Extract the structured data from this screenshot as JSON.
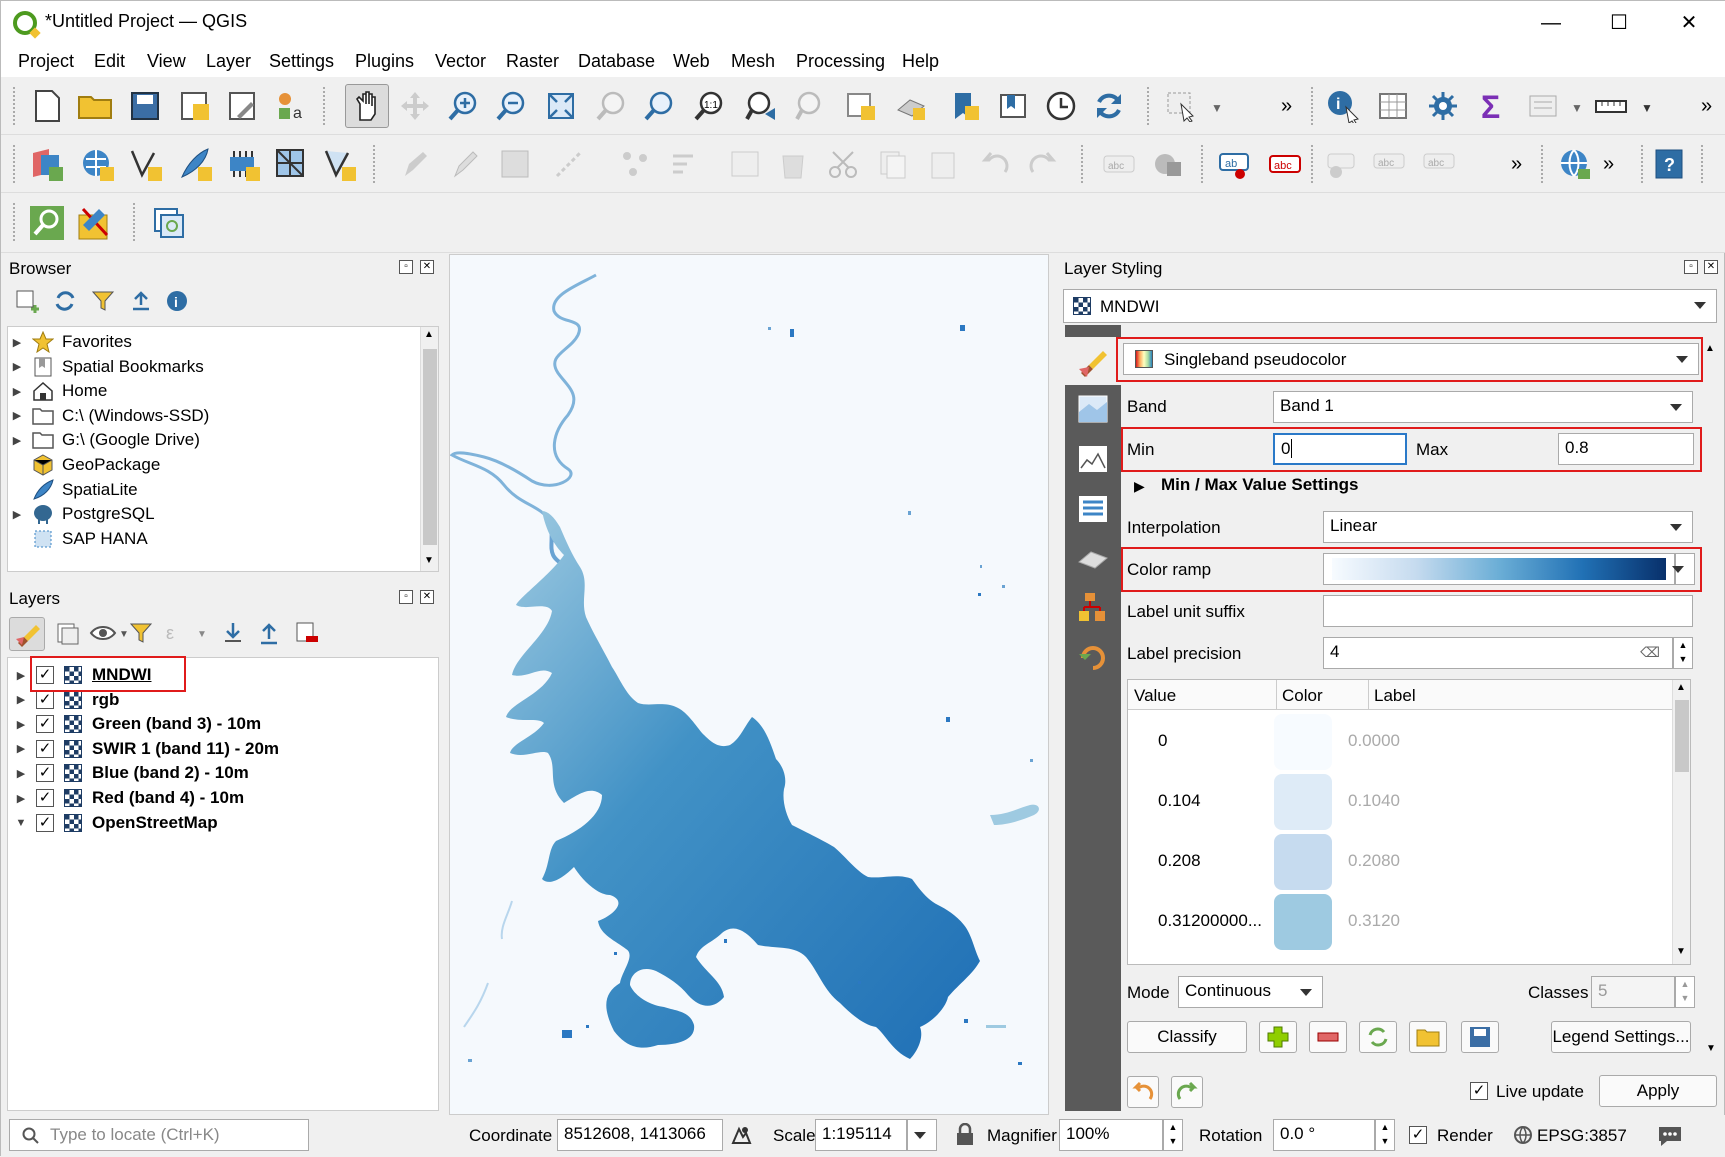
{
  "app": {
    "title": "*Untitled Project — QGIS",
    "menus": [
      "Project",
      "Edit",
      "View",
      "Layer",
      "Settings",
      "Plugins",
      "Vector",
      "Raster",
      "Database",
      "Web",
      "Mesh",
      "Processing",
      "Help"
    ]
  },
  "browser": {
    "title": "Browser",
    "items": [
      {
        "label": "Favorites",
        "icon": "star-icon",
        "expandable": true
      },
      {
        "label": "Spatial Bookmarks",
        "icon": "bookmark-icon",
        "expandable": true
      },
      {
        "label": "Home",
        "icon": "home-icon",
        "expandable": true
      },
      {
        "label": "C:\\ (Windows-SSD)",
        "icon": "folder-icon",
        "expandable": true
      },
      {
        "label": "G:\\ (Google Drive)",
        "icon": "folder-icon",
        "expandable": true
      },
      {
        "label": "GeoPackage",
        "icon": "geopackage-icon",
        "expandable": false
      },
      {
        "label": "SpatiaLite",
        "icon": "spatialite-icon",
        "expandable": false
      },
      {
        "label": "PostgreSQL",
        "icon": "postgresql-icon",
        "expandable": true
      },
      {
        "label": "SAP HANA",
        "icon": "sap-hana-icon",
        "expandable": false
      }
    ]
  },
  "layers": {
    "title": "Layers",
    "items": [
      {
        "label": "MNDWI",
        "checked": true,
        "selected": true
      },
      {
        "label": "rgb",
        "checked": true
      },
      {
        "label": "Green (band 3) - 10m",
        "checked": true
      },
      {
        "label": "SWIR 1 (band 11) - 20m",
        "checked": true
      },
      {
        "label": "Blue (band 2) - 10m",
        "checked": true
      },
      {
        "label": "Red (band 4) - 10m",
        "checked": true
      },
      {
        "label": "OpenStreetMap",
        "checked": true
      }
    ]
  },
  "styling": {
    "title": "Layer Styling",
    "layer": "MNDWI",
    "renderer": "Singleband pseudocolor",
    "band_label": "Band",
    "band": "Band 1",
    "min_label": "Min",
    "min": "0",
    "max_label": "Max",
    "max": "0.8",
    "minmax_settings": "Min / Max Value Settings",
    "interpolation_label": "Interpolation",
    "interpolation": "Linear",
    "color_ramp_label": "Color ramp",
    "label_suffix_label": "Label unit suffix",
    "label_suffix": "",
    "label_precision_label": "Label precision",
    "label_precision": "4",
    "table_headers": [
      "Value",
      "Color",
      "Label"
    ],
    "classes": [
      {
        "value": "0",
        "label": "0.0000",
        "color": "#f7fbff"
      },
      {
        "value": "0.104",
        "label": "0.1040",
        "color": "#deebf7"
      },
      {
        "value": "0.208",
        "label": "0.2080",
        "color": "#c6dbef"
      },
      {
        "value": "0.31200000...",
        "label": "0.3120",
        "color": "#9ecae1"
      }
    ],
    "mode_label": "Mode",
    "mode": "Continuous",
    "classes_label": "Classes",
    "classes_count": "5",
    "classify": "Classify",
    "legend_settings": "Legend Settings...",
    "live_update": "Live update",
    "apply": "Apply",
    "ramp_colors": [
      "#f7fbff",
      "#08519c"
    ]
  },
  "status": {
    "locate_placeholder": "Type to locate (Ctrl+K)",
    "coordinate_label": "Coordinate",
    "coordinate": "8512608, 1413066",
    "scale_label": "Scale",
    "scale": "1:195114",
    "magnifier_label": "Magnifier",
    "magnifier": "100%",
    "rotation_label": "Rotation",
    "rotation": "0.0 °",
    "render_label": "Render",
    "crs": "EPSG:3857"
  },
  "colors": {
    "highlight": "#e01b1b",
    "water": "#2b78c2",
    "accent": "#0a5fa8"
  }
}
